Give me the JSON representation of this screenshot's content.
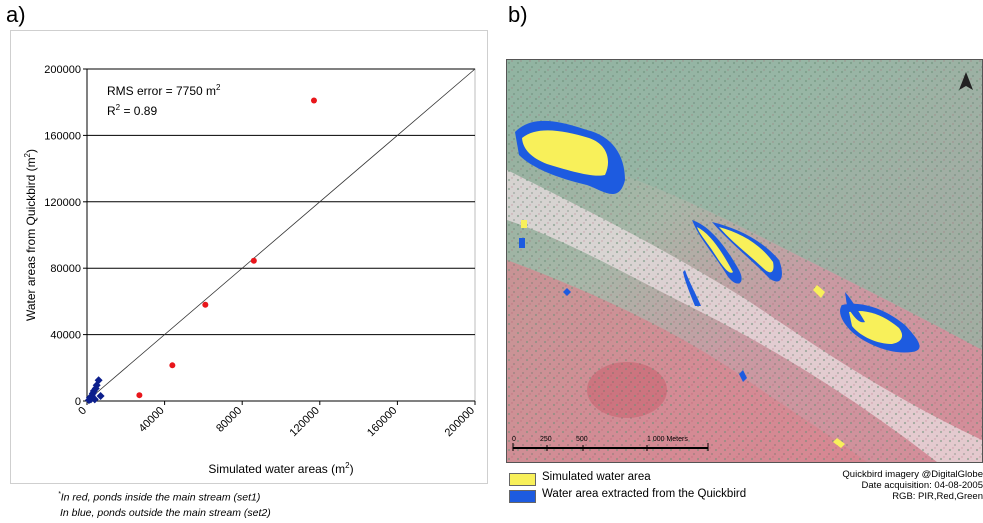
{
  "panel_a_label": "a)",
  "panel_b_label": "b)",
  "chart_data": {
    "type": "scatter",
    "xlabel": "Simulated water areas (m",
    "xlabel_sup": "2",
    "xlabel_end": ")",
    "ylabel": "Water areas from Quickbird (m",
    "ylabel_sup": "2",
    "ylabel_end": ")",
    "xlim": [
      0,
      200000
    ],
    "ylim": [
      0,
      200000
    ],
    "x_ticks": [
      "0",
      "40000",
      "80000",
      "120000",
      "160000",
      "200000"
    ],
    "y_ticks": [
      "0",
      "40000",
      "80000",
      "120000",
      "160000",
      "200000"
    ],
    "y_tick_values": [
      0,
      40000,
      80000,
      120000,
      160000,
      200000
    ],
    "x_tick_values": [
      0,
      40000,
      80000,
      120000,
      160000,
      200000
    ],
    "grid": "horizontal",
    "annotation_rms": "RMS error = 7750 m",
    "annotation_rms_sup": "2",
    "annotation_r2_pre": "R",
    "annotation_r2_sup": "2",
    "annotation_r2_post": " = 0.89",
    "reference_line": [
      [
        0,
        0
      ],
      [
        240000,
        240000
      ]
    ],
    "series": [
      {
        "color": "#e8161b",
        "marker": "circle",
        "points": [
          [
            117000,
            181000
          ],
          [
            86000,
            84500
          ],
          [
            61000,
            58000
          ],
          [
            44000,
            21500
          ],
          [
            27000,
            3500
          ]
        ]
      },
      {
        "color": "#0c1f8c",
        "marker": "diamond",
        "points": [
          [
            6000,
            12500
          ],
          [
            5000,
            9500
          ],
          [
            4500,
            7500
          ],
          [
            3500,
            6000
          ],
          [
            3000,
            4500
          ],
          [
            2500,
            3000
          ],
          [
            7000,
            3000
          ],
          [
            1500,
            2000
          ],
          [
            1000,
            500
          ],
          [
            4000,
            1000
          ],
          [
            2000,
            1000
          ]
        ]
      }
    ]
  },
  "notes": {
    "line1_mark": "*",
    "line1": "In red, ponds inside the main stream (set1)",
    "line2": "In blue, ponds outside the main stream (set2)"
  },
  "map": {
    "scale_labels": [
      "0",
      "250",
      "500",
      "1 000 Meters"
    ],
    "north_arrow": "north-arrow-icon"
  },
  "legend": {
    "simulated": "Simulated water area",
    "extracted": "Water area extracted from the Quickbird",
    "simulated_color": "#f8f05a",
    "extracted_color": "#1d5be0"
  },
  "credits": {
    "line1": "Quickbird imagery @DigitalGlobe",
    "line2": "Date acquisition: 04-08-2005",
    "line3": "RGB: PIR,Red,Green"
  }
}
